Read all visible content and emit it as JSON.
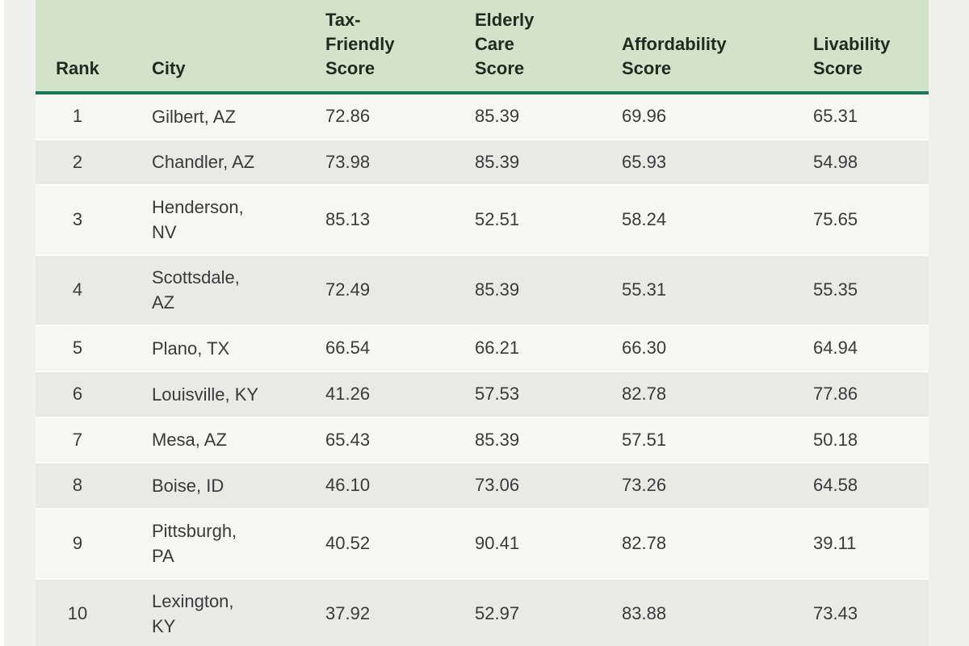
{
  "colors": {
    "page_bg": "#f0f0ee",
    "header_bg": "#d3e3c9",
    "header_rule": "#17795c",
    "row_light": "#f6f6f4",
    "row_dark": "#e9e9e7",
    "row_sep": "#fbfbf9",
    "header_text": "#1f2b20",
    "body_text": "#3a3a3a"
  },
  "chart_data": {
    "type": "table",
    "title": "",
    "columns": [
      {
        "key": "rank",
        "label": "Rank"
      },
      {
        "key": "city",
        "label": "City"
      },
      {
        "key": "tax",
        "label": "Tax-Friendly Score"
      },
      {
        "key": "elderly",
        "label": "Elderly Care Score"
      },
      {
        "key": "afford",
        "label": "Affordability Score"
      },
      {
        "key": "livability",
        "label": "Livability Score"
      }
    ],
    "rows": [
      {
        "rank": "1",
        "city": "Gilbert, AZ",
        "tax": "72.86",
        "elderly": "85.39",
        "afford": "69.96",
        "livability": "65.31"
      },
      {
        "rank": "2",
        "city": "Chandler, AZ",
        "tax": "73.98",
        "elderly": "85.39",
        "afford": "65.93",
        "livability": "54.98"
      },
      {
        "rank": "3",
        "city": "Henderson, NV",
        "tax": "85.13",
        "elderly": "52.51",
        "afford": "58.24",
        "livability": "75.65"
      },
      {
        "rank": "4",
        "city": "Scottsdale, AZ",
        "tax": "72.49",
        "elderly": "85.39",
        "afford": "55.31",
        "livability": "55.35"
      },
      {
        "rank": "5",
        "city": "Plano, TX",
        "tax": "66.54",
        "elderly": "66.21",
        "afford": "66.30",
        "livability": "64.94"
      },
      {
        "rank": "6",
        "city": "Louisville, KY",
        "tax": "41.26",
        "elderly": "57.53",
        "afford": "82.78",
        "livability": "77.86"
      },
      {
        "rank": "7",
        "city": "Mesa, AZ",
        "tax": "65.43",
        "elderly": "85.39",
        "afford": "57.51",
        "livability": "50.18"
      },
      {
        "rank": "8",
        "city": "Boise, ID",
        "tax": "46.10",
        "elderly": "73.06",
        "afford": "73.26",
        "livability": "64.58"
      },
      {
        "rank": "9",
        "city": "Pittsburgh, PA",
        "tax": "40.52",
        "elderly": "90.41",
        "afford": "82.78",
        "livability": "39.11"
      },
      {
        "rank": "10",
        "city": "Lexington, KY",
        "tax": "37.92",
        "elderly": "52.97",
        "afford": "83.88",
        "livability": "73.43"
      }
    ]
  }
}
